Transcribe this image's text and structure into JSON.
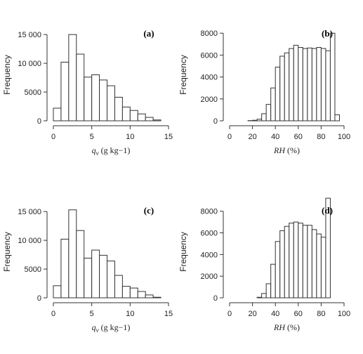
{
  "chart_data": [
    {
      "panel": "(a)",
      "type": "bar",
      "xlabel": "q_v (g kg−1)",
      "ylabel": "Frequency",
      "x_ticks": [
        0,
        5,
        10,
        15
      ],
      "x_tick_labels": [
        "0",
        "5",
        "10",
        "15"
      ],
      "y_ticks": [
        0,
        5000,
        10000,
        15000
      ],
      "y_tick_labels": [
        "0",
        "5000",
        "10 000",
        "15 000"
      ],
      "xlim": [
        0,
        15
      ],
      "ylim": [
        0,
        16000
      ],
      "bin_width": 1,
      "bin_starts": [
        0,
        1,
        2,
        3,
        4,
        5,
        6,
        7,
        8,
        9,
        10,
        11,
        12,
        13
      ],
      "values": [
        2200,
        10200,
        15000,
        11600,
        7600,
        8000,
        7100,
        6100,
        4100,
        2400,
        1800,
        1200,
        600,
        150
      ]
    },
    {
      "panel": "(b)",
      "type": "bar",
      "xlabel": "RH (%)",
      "ylabel": "Frequency",
      "x_ticks": [
        0,
        20,
        40,
        60,
        80,
        100
      ],
      "x_tick_labels": [
        "0",
        "20",
        "40",
        "60",
        "80",
        "100"
      ],
      "y_ticks": [
        0,
        2000,
        4000,
        6000,
        8000
      ],
      "y_tick_labels": [
        "0",
        "2000",
        "4000",
        "6000",
        "8000"
      ],
      "xlim": [
        0,
        100
      ],
      "ylim": [
        0,
        8400
      ],
      "bin_width": 4,
      "bin_starts": [
        16,
        20,
        24,
        28,
        32,
        36,
        40,
        44,
        48,
        52,
        56,
        60,
        64,
        68,
        72,
        76,
        80,
        84,
        88,
        92,
        96,
        100
      ],
      "values": [
        20,
        50,
        150,
        650,
        1500,
        3000,
        4900,
        5900,
        6200,
        6600,
        6900,
        6700,
        6600,
        6650,
        6600,
        6700,
        6600,
        6400,
        8000,
        550,
        0,
        0
      ]
    },
    {
      "panel": "(c)",
      "type": "bar",
      "xlabel": "q_v (g kg−1)",
      "ylabel": "Frequency",
      "x_ticks": [
        0,
        5,
        10,
        15
      ],
      "x_tick_labels": [
        "0",
        "5",
        "10",
        "15"
      ],
      "y_ticks": [
        0,
        5000,
        10000,
        15000
      ],
      "y_tick_labels": [
        "0",
        "5000",
        "10 000",
        "15 000"
      ],
      "xlim": [
        0,
        15
      ],
      "ylim": [
        0,
        16000
      ],
      "bin_width": 1,
      "bin_starts": [
        0,
        1,
        2,
        3,
        4,
        5,
        6,
        7,
        8,
        9,
        10,
        11,
        12,
        13
      ],
      "values": [
        2100,
        10200,
        15300,
        11700,
        6900,
        8300,
        7400,
        6400,
        3900,
        2000,
        1700,
        1100,
        500,
        100
      ]
    },
    {
      "panel": "(d)",
      "type": "bar",
      "xlabel": "RH (%)",
      "ylabel": "Frequency",
      "x_ticks": [
        0,
        20,
        40,
        60,
        80,
        100
      ],
      "x_tick_labels": [
        "0",
        "20",
        "40",
        "60",
        "80",
        "100"
      ],
      "y_ticks": [
        0,
        2000,
        4000,
        6000,
        8000
      ],
      "y_tick_labels": [
        "0",
        "2000",
        "4000",
        "6000",
        "8000"
      ],
      "xlim": [
        0,
        100
      ],
      "ylim": [
        0,
        8500
      ],
      "bin_width": 4,
      "bin_starts": [
        24,
        28,
        32,
        36,
        40,
        44,
        48,
        52,
        56,
        60,
        64,
        68,
        72,
        76,
        80,
        84,
        88,
        92,
        96
      ],
      "values": [
        50,
        400,
        1300,
        3100,
        5200,
        6200,
        6600,
        6900,
        7000,
        6900,
        6700,
        6700,
        6300,
        5900,
        5600,
        9200,
        0,
        0,
        0
      ]
    }
  ]
}
